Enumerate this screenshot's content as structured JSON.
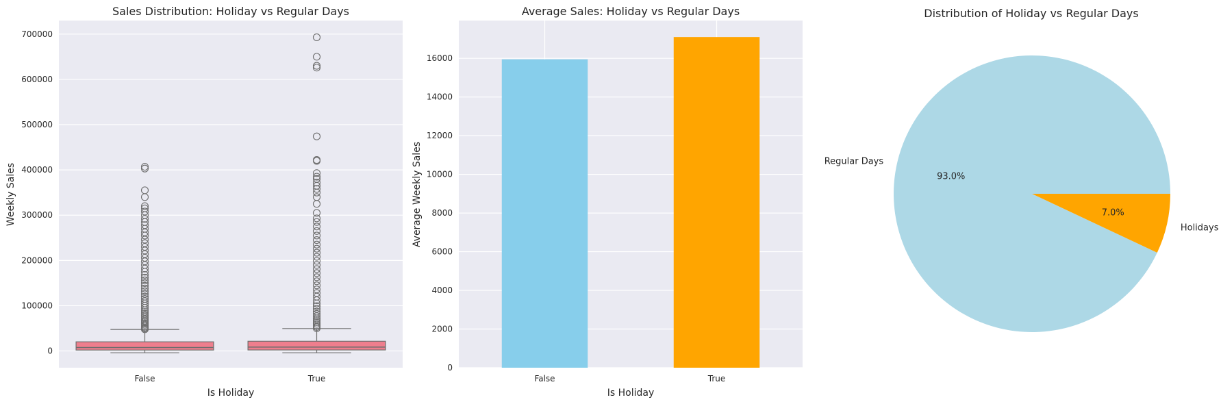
{
  "style": {
    "panel_bg": "#eaeaf2",
    "grid": "#ffffff",
    "box_fill": "#ee7e8d",
    "box_edge": "#6e6e6e",
    "bar_false": "#87ceeb",
    "bar_true": "#ffa500",
    "pie_regular": "#add8e6",
    "pie_holiday": "#ffa500"
  },
  "chart_data": [
    {
      "type": "box",
      "title": "Sales Distribution: Holiday vs Regular Days",
      "xlabel": "Is Holiday",
      "ylabel": "Weekly Sales",
      "categories": [
        "False",
        "True"
      ],
      "ylim": [
        -37000,
        730000
      ],
      "yticks": [
        0,
        100000,
        200000,
        300000,
        400000,
        500000,
        600000,
        700000
      ],
      "ytick_labels": [
        "0",
        "100000",
        "200000",
        "300000",
        "400000",
        "500000",
        "600000",
        "700000"
      ],
      "boxes": [
        {
          "category": "False",
          "whisker_low": -4000,
          "q1": 2000,
          "median": 7600,
          "q3": 20200,
          "whisker_high": 47500,
          "outliers": [
            48000,
            50000,
            52000,
            55000,
            58000,
            61000,
            64000,
            67000,
            70000,
            74000,
            78000,
            82000,
            86000,
            90000,
            95000,
            100000,
            105000,
            110000,
            115000,
            120000,
            126000,
            132000,
            138000,
            144000,
            150000,
            156000,
            162000,
            168000,
            175000,
            182000,
            190000,
            198000,
            206000,
            214000,
            222000,
            230000,
            238000,
            246000,
            255000,
            262000,
            270000,
            278000,
            285000,
            292000,
            300000,
            308000,
            315000,
            320000,
            340000,
            355000,
            403000,
            407000
          ]
        },
        {
          "category": "True",
          "whisker_low": -4000,
          "q1": 2200,
          "median": 8500,
          "q3": 21500,
          "whisker_high": 49500,
          "outliers": [
            50000,
            53000,
            56000,
            60000,
            64000,
            68000,
            72000,
            77000,
            82000,
            87000,
            93000,
            99000,
            105000,
            112000,
            120000,
            128000,
            136000,
            145000,
            154000,
            163000,
            172000,
            181000,
            190000,
            199000,
            208000,
            217000,
            226000,
            235000,
            245000,
            255000,
            265000,
            275000,
            285000,
            293000,
            305000,
            325000,
            340000,
            350000,
            358000,
            365000,
            372000,
            380000,
            385000,
            393000,
            420000,
            422000,
            474000,
            626000,
            630000,
            650000,
            693000
          ]
        }
      ]
    },
    {
      "type": "bar",
      "title": "Average Sales: Holiday vs Regular Days",
      "xlabel": "Is Holiday",
      "ylabel": "Average Weekly Sales",
      "categories": [
        "False",
        "True"
      ],
      "values": [
        15950,
        17100
      ],
      "ylim": [
        0,
        17955
      ],
      "yticks": [
        0,
        2000,
        4000,
        6000,
        8000,
        10000,
        12000,
        14000,
        16000
      ],
      "ytick_labels": [
        "0",
        "2000",
        "4000",
        "6000",
        "8000",
        "10000",
        "12000",
        "14000",
        "16000"
      ]
    },
    {
      "type": "pie",
      "title": "Distribution of Holiday vs Regular Days",
      "labels": [
        "Regular Days",
        "Holidays"
      ],
      "values": [
        93.0,
        7.0
      ],
      "autopct": [
        "93.0%",
        "7.0%"
      ],
      "start_angle_deg": 0
    }
  ]
}
